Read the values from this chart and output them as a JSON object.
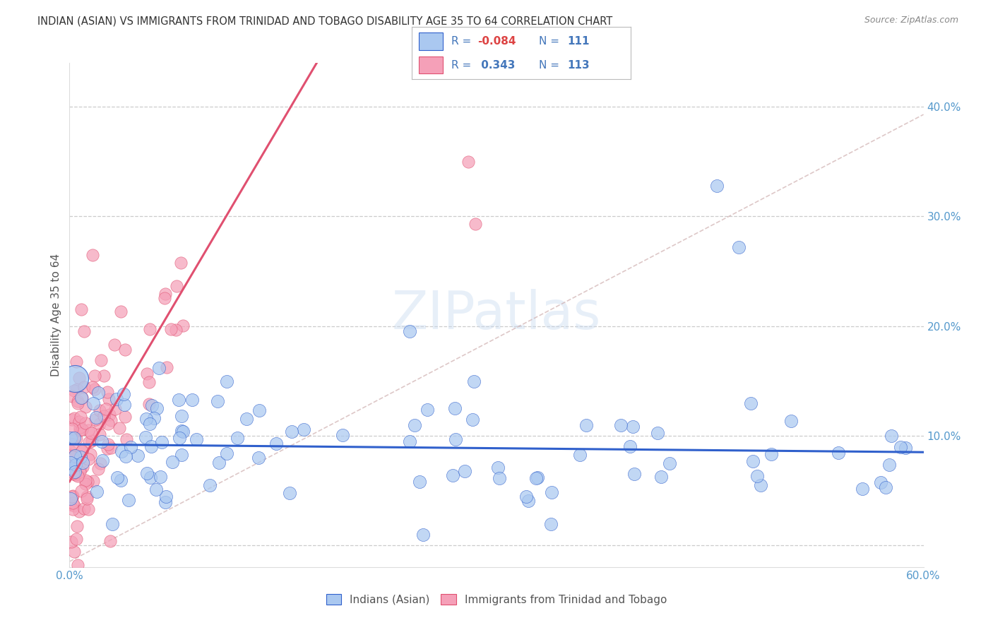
{
  "title": "INDIAN (ASIAN) VS IMMIGRANTS FROM TRINIDAD AND TOBAGO DISABILITY AGE 35 TO 64 CORRELATION CHART",
  "source": "Source: ZipAtlas.com",
  "ylabel": "Disability Age 35 to 64",
  "xlim": [
    0.0,
    0.6
  ],
  "ylim": [
    -0.02,
    0.44
  ],
  "x_ticks": [
    0.0,
    0.1,
    0.2,
    0.3,
    0.4,
    0.5,
    0.6
  ],
  "x_tick_labels": [
    "0.0%",
    "",
    "",
    "",
    "",
    "",
    "60.0%"
  ],
  "y_ticks": [
    0.0,
    0.1,
    0.2,
    0.3,
    0.4
  ],
  "y_tick_labels": [
    "",
    "10.0%",
    "20.0%",
    "30.0%",
    "40.0%"
  ],
  "grid_color": "#cccccc",
  "background_color": "#ffffff",
  "color_blue": "#aac8f0",
  "color_pink": "#f5a0b8",
  "line_blue": "#3060cc",
  "line_pink": "#e05070",
  "legend_R_blue": "-0.084",
  "legend_N_blue": "111",
  "legend_R_pink": "0.343",
  "legend_N_pink": "113",
  "legend_label_blue": "Indians (Asian)",
  "legend_label_pink": "Immigrants from Trinidad and Tobago",
  "watermark": "ZIPatlas",
  "blue_slope": -0.012,
  "blue_intercept": 0.092,
  "pink_slope": 2.2,
  "pink_intercept": 0.058,
  "dashed_slope": 0.68,
  "dashed_intercept": -0.015
}
